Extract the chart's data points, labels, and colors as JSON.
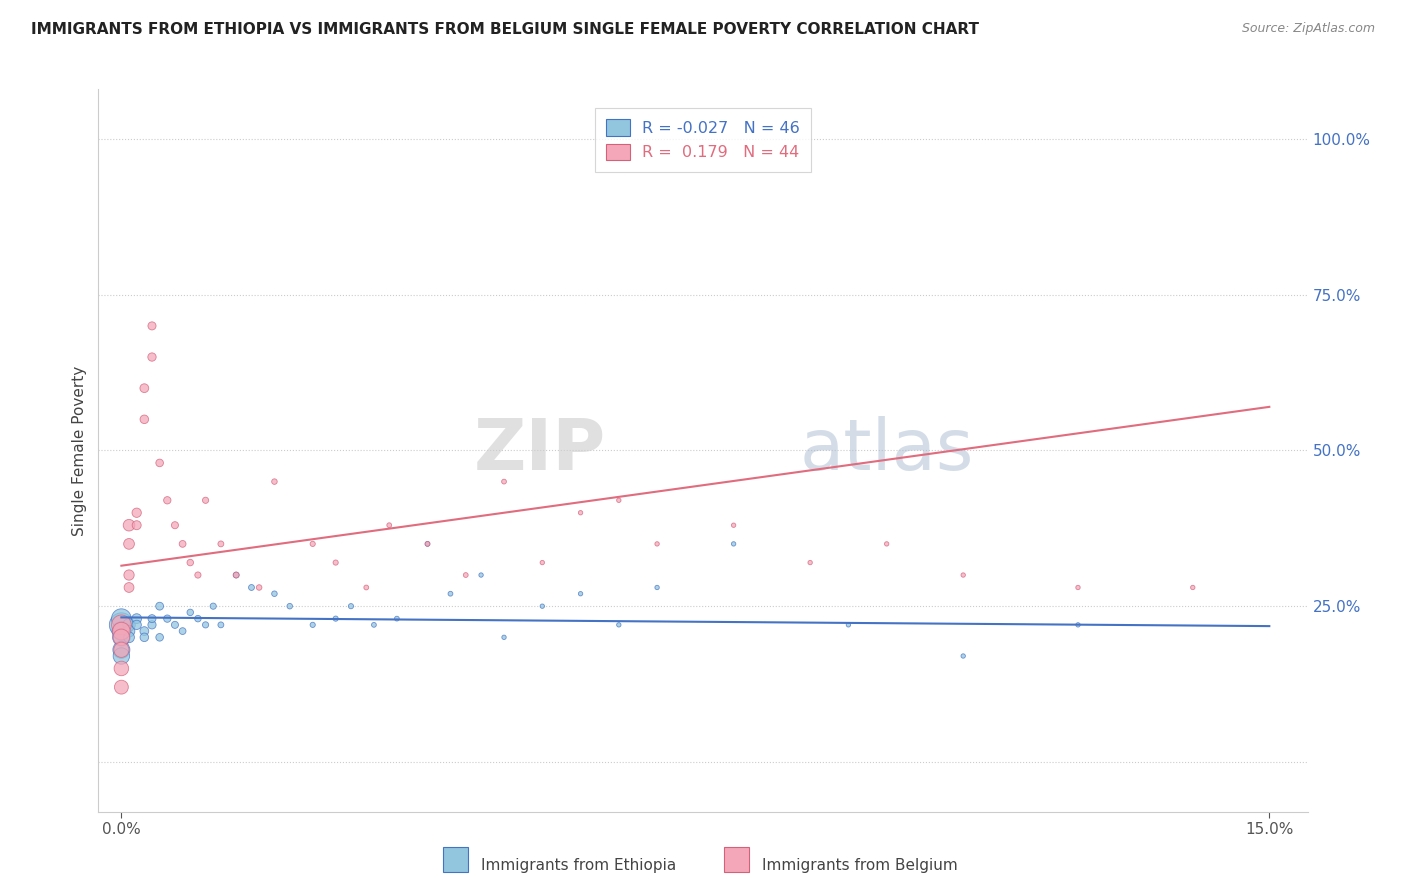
{
  "title": "IMMIGRANTS FROM ETHIOPIA VS IMMIGRANTS FROM BELGIUM SINGLE FEMALE POVERTY CORRELATION CHART",
  "source": "Source: ZipAtlas.com",
  "ylabel": "Single Female Poverty",
  "y_ticks": [
    0.0,
    0.25,
    0.5,
    0.75,
    1.0
  ],
  "y_tick_labels": [
    "",
    "25.0%",
    "50.0%",
    "75.0%",
    "100.0%"
  ],
  "x_min": 0.0,
  "x_max": 0.15,
  "y_min": -0.08,
  "y_max": 1.08,
  "color_ethiopia": "#92C5DE",
  "color_belgium": "#F4A7B9",
  "color_line_ethiopia": "#4472C4",
  "color_line_belgium": "#E06C7E",
  "watermark_zip": "ZIP",
  "watermark_atlas": "atlas",
  "eth_line_y0": 0.232,
  "eth_line_y1": 0.218,
  "bel_line_y0": 0.315,
  "bel_line_y1": 0.57,
  "ethiopia_x": [
    0.0,
    0.0,
    0.0,
    0.0,
    0.0,
    0.0,
    0.001,
    0.001,
    0.001,
    0.002,
    0.002,
    0.003,
    0.003,
    0.004,
    0.004,
    0.005,
    0.005,
    0.006,
    0.007,
    0.008,
    0.009,
    0.01,
    0.011,
    0.012,
    0.013,
    0.015,
    0.017,
    0.02,
    0.022,
    0.025,
    0.028,
    0.03,
    0.033,
    0.036,
    0.04,
    0.043,
    0.047,
    0.05,
    0.055,
    0.06,
    0.065,
    0.07,
    0.08,
    0.095,
    0.11,
    0.125
  ],
  "ethiopia_y": [
    0.22,
    0.23,
    0.21,
    0.2,
    0.18,
    0.17,
    0.22,
    0.21,
    0.2,
    0.23,
    0.22,
    0.21,
    0.2,
    0.22,
    0.23,
    0.25,
    0.2,
    0.23,
    0.22,
    0.21,
    0.24,
    0.23,
    0.22,
    0.25,
    0.22,
    0.3,
    0.28,
    0.27,
    0.25,
    0.22,
    0.23,
    0.25,
    0.22,
    0.23,
    0.35,
    0.27,
    0.3,
    0.2,
    0.25,
    0.27,
    0.22,
    0.28,
    0.35,
    0.22,
    0.17,
    0.22
  ],
  "ethiopia_sizes": [
    300,
    200,
    180,
    160,
    150,
    140,
    80,
    70,
    60,
    50,
    45,
    40,
    38,
    35,
    33,
    32,
    30,
    28,
    26,
    24,
    22,
    22,
    20,
    20,
    18,
    18,
    18,
    16,
    16,
    14,
    14,
    14,
    12,
    12,
    12,
    12,
    10,
    10,
    10,
    10,
    10,
    10,
    10,
    10,
    10,
    10
  ],
  "belgium_x": [
    0.0,
    0.0,
    0.0,
    0.0,
    0.0,
    0.0,
    0.001,
    0.001,
    0.001,
    0.001,
    0.002,
    0.002,
    0.003,
    0.003,
    0.004,
    0.004,
    0.005,
    0.006,
    0.007,
    0.008,
    0.009,
    0.01,
    0.011,
    0.013,
    0.015,
    0.018,
    0.02,
    0.025,
    0.028,
    0.032,
    0.035,
    0.04,
    0.045,
    0.05,
    0.055,
    0.06,
    0.065,
    0.07,
    0.08,
    0.09,
    0.1,
    0.11,
    0.125,
    0.14
  ],
  "belgium_y": [
    0.22,
    0.21,
    0.2,
    0.18,
    0.15,
    0.12,
    0.38,
    0.35,
    0.3,
    0.28,
    0.4,
    0.38,
    0.6,
    0.55,
    0.65,
    0.7,
    0.48,
    0.42,
    0.38,
    0.35,
    0.32,
    0.3,
    0.42,
    0.35,
    0.3,
    0.28,
    0.45,
    0.35,
    0.32,
    0.28,
    0.38,
    0.35,
    0.3,
    0.45,
    0.32,
    0.4,
    0.42,
    0.35,
    0.38,
    0.32,
    0.35,
    0.3,
    0.28,
    0.28
  ],
  "belgium_sizes": [
    200,
    160,
    140,
    120,
    110,
    100,
    70,
    60,
    55,
    50,
    45,
    42,
    40,
    38,
    36,
    34,
    30,
    28,
    26,
    24,
    22,
    20,
    20,
    18,
    18,
    16,
    16,
    14,
    14,
    12,
    12,
    12,
    12,
    12,
    10,
    10,
    10,
    10,
    10,
    10,
    10,
    10,
    10,
    10
  ]
}
